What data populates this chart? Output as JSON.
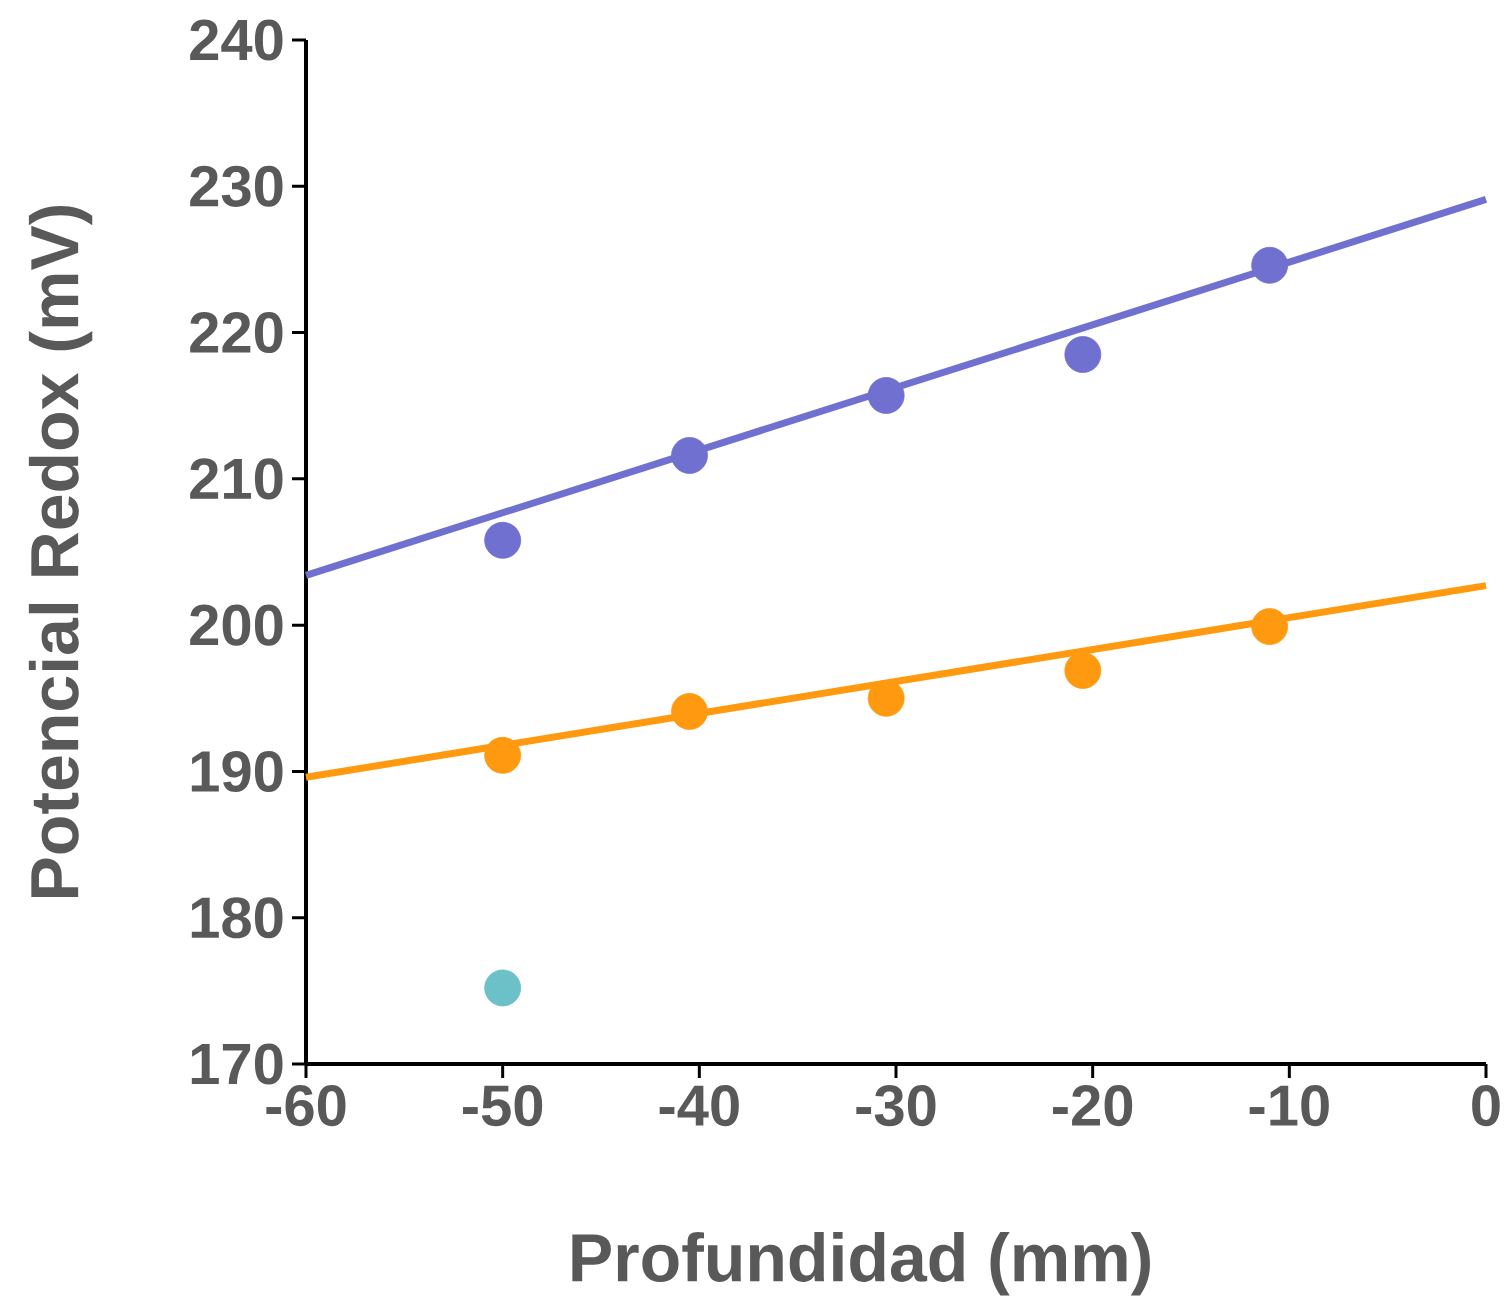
{
  "chart_data": {
    "type": "scatter",
    "xlabel": "Profundidad (mm)",
    "ylabel": "Potencial Redox (mV)",
    "xlim": [
      -60,
      0
    ],
    "ylim": [
      170,
      240
    ],
    "xticks": [
      -60,
      -50,
      -40,
      -30,
      -20,
      -10,
      0
    ],
    "yticks": [
      170,
      180,
      190,
      200,
      210,
      220,
      230,
      240
    ],
    "grid": false,
    "series": [
      {
        "type": "line",
        "color": "#7070d0",
        "x": [
          -60,
          0
        ],
        "values": [
          203.4,
          229.1
        ],
        "line_style": "solid",
        "marker": "none"
      },
      {
        "type": "line",
        "color": "#ff9a10",
        "x": [
          -60,
          0
        ],
        "values": [
          189.6,
          202.7
        ],
        "line_style": "solid",
        "marker": "none"
      },
      {
        "color": "#7070d0",
        "marker": "circle",
        "x": [
          -50,
          -40.5,
          -30.5,
          -20.5,
          -11
        ],
        "values": [
          205.8,
          211.6,
          215.7,
          218.5,
          224.6
        ]
      },
      {
        "color": "#ff9a10",
        "marker": "circle",
        "x": [
          -50,
          -40.5,
          -30.5,
          -20.5,
          -11
        ],
        "values": [
          191.1,
          194.1,
          195.0,
          196.9,
          199.9
        ]
      },
      {
        "color": "#6cc0c8",
        "marker": "circle",
        "x": [
          -50
        ],
        "values": [
          175.2
        ]
      }
    ]
  }
}
